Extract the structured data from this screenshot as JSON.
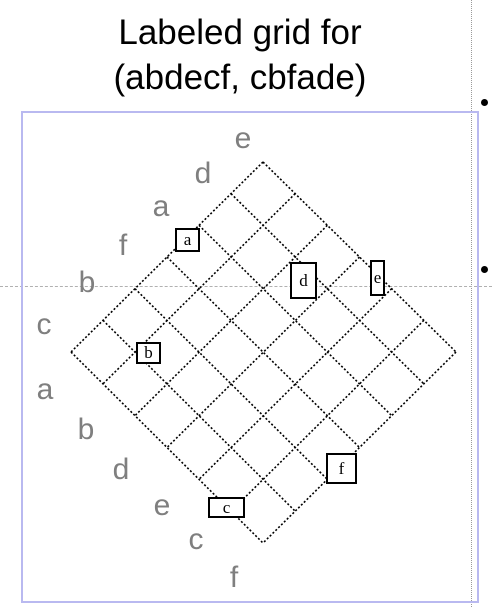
{
  "title": {
    "line1": "Labeled grid for",
    "line2": "(abdecf, cbfade)"
  },
  "top_sequence": {
    "labels": [
      "e",
      "d",
      "a",
      "f",
      "b",
      "c"
    ]
  },
  "bottom_sequence": {
    "labels": [
      "a",
      "b",
      "d",
      "e",
      "c",
      "f"
    ]
  },
  "marked_cells": [
    {
      "label": "a"
    },
    {
      "label": "b"
    },
    {
      "label": "d"
    },
    {
      "label": "e"
    },
    {
      "label": "f"
    },
    {
      "label": "c"
    }
  ],
  "colors": {
    "frame": "#b9b9f0",
    "sequence_label": "#7f7f7f",
    "grid_line": "#000000"
  }
}
